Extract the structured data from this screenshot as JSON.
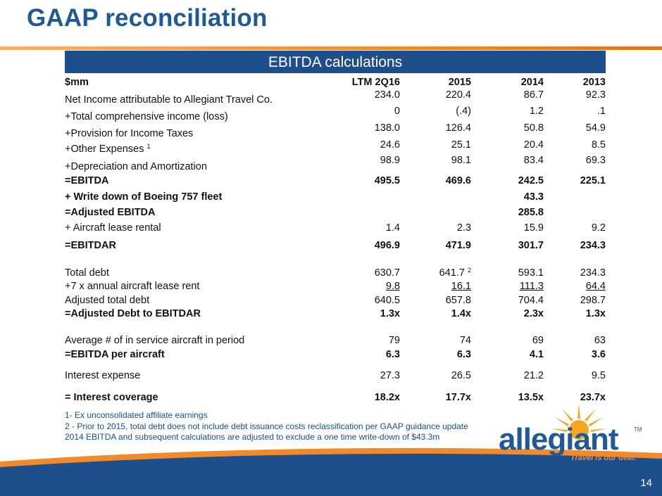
{
  "title": "GAAP reconciliation",
  "banner": "EBITDA calculations",
  "header": {
    "label": "$mm",
    "cols": [
      "LTM 2Q16",
      "2015",
      "2014",
      "2013"
    ]
  },
  "rows": [
    {
      "label": "Net Income attributable to Allegiant Travel Co.",
      "values": [
        "234.0",
        "220.4",
        "86.7",
        "92.3"
      ]
    },
    {
      "label": "+Total comprehensive income (loss)",
      "values": [
        "0",
        "(.4)",
        "1.2",
        ".1"
      ]
    },
    {
      "label": "+Provision for Income Taxes",
      "values": [
        "138.0",
        "126.4",
        "50.8",
        "54.9"
      ]
    },
    {
      "label": "+Other Expenses",
      "sup": "1",
      "values": [
        "24.6",
        "25.1",
        "20.4",
        "8.5"
      ]
    },
    {
      "label": "+Depreciation and Amortization",
      "values": [
        "98.9",
        "98.1",
        "83.4",
        "69.3"
      ]
    },
    {
      "label": "=EBITDA",
      "values": [
        "495.5",
        "469.6",
        "242.5",
        "225.1"
      ]
    },
    {
      "label": "+ Write down of Boeing 757 fleet",
      "values": [
        "",
        "",
        "43.3",
        ""
      ]
    },
    {
      "label": "=Adjusted EBITDA",
      "values": [
        "",
        "",
        "285.8",
        ""
      ]
    },
    {
      "label": "+ Aircraft lease rental",
      "values": [
        "1.4",
        "2.3",
        "15.9",
        "9.2"
      ]
    },
    {
      "label": "=EBITDAR",
      "values": [
        "496.9",
        "471.9",
        "301.7",
        "234.3"
      ]
    },
    {
      "label": "Total debt",
      "values": [
        "630.7",
        "641.7",
        "593.1",
        "234.3"
      ],
      "sup2": "2"
    },
    {
      "label": "+7 x annual aircraft lease rent",
      "values": [
        "9.8",
        "16.1",
        "111.3",
        "64.4"
      ]
    },
    {
      "label": "Adjusted total debt",
      "values": [
        "640.5",
        "657.8",
        "704.4",
        "298.7"
      ]
    },
    {
      "label": "=Adjusted Debt to EBITDAR",
      "values": [
        "1.3x",
        "1.4x",
        "2.3x",
        "1.3x"
      ]
    },
    {
      "label": "Average # of in service aircraft in period",
      "values": [
        "79",
        "74",
        "69",
        "63"
      ]
    },
    {
      "label": "=EBITDA per aircraft",
      "values": [
        "6.3",
        "6.3",
        "4.1",
        "3.6"
      ]
    },
    {
      "label": "Interest expense",
      "values": [
        "27.3",
        "26.5",
        "21.2",
        "9.5"
      ]
    },
    {
      "label": "= Interest coverage",
      "values": [
        "18.2x",
        "17.7x",
        "13.5x",
        "23.7x"
      ]
    }
  ],
  "footnotes": [
    "1- Ex unconsolidated affiliate earnings",
    "2 - Prior to 2015, total debt does not include debt issuance costs reclassification per GAAP guidance update",
    "2014 EBITDA and subsequent calculations are adjusted to exclude a one time write-down of $43.3m"
  ],
  "logo": {
    "name": "allegiant",
    "tm": "TM",
    "tagline": "Travel is our deal."
  },
  "page_number": "14",
  "colors": {
    "title": "#1f5a96",
    "banner": "#1f4e8c",
    "accent": "#f08a2a",
    "wave": "#1f4e8c",
    "footnote": "#1a4d8f"
  }
}
